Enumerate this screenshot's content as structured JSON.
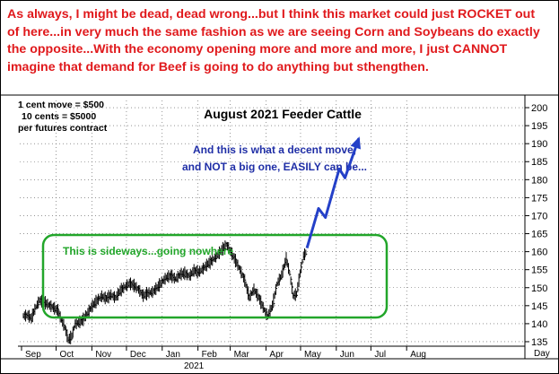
{
  "commentary": {
    "banner": "As always, I might be dead, dead wrong...but I think this market could just ROCKET out of here...in very much the same fashion as we are seeing Corn and Soybeans do exactly the opposite...With the economy opening more and more and more,  I just CANNOT imagine that demand for Beef is going to do anything but sthengthen.",
    "contract_lines": [
      "1 cent move = $500",
      "10 cents = $5000",
      "per futures contract"
    ]
  },
  "colors": {
    "banner": "#e0191c",
    "annotation_blue": "#1f2ea6",
    "annotation_green": "#22a62a",
    "arrow": "#2440c8",
    "bars": "#000000",
    "grid": "#555555"
  },
  "chart_data": {
    "type": "bar",
    "title": "August 2021 Feeder Cattle",
    "ylim": [
      133,
      202
    ],
    "y_ticks": [
      135,
      140,
      145,
      150,
      155,
      160,
      165,
      170,
      175,
      180,
      185,
      190,
      195,
      200
    ],
    "y_axis_side": "right",
    "y_axis_label": "Day",
    "grid": "dotted",
    "months": [
      "Sep",
      "Oct",
      "Nov",
      "Dec",
      "Jan",
      "Feb",
      "Mar",
      "Apr",
      "May",
      "Jun",
      "Jul",
      "Aug"
    ],
    "year_label": "2021",
    "prices": [
      {
        "d": 0,
        "p": 142.2
      },
      {
        "d": 4,
        "p": 142.3
      },
      {
        "d": 7,
        "p": 141.5
      },
      {
        "d": 10,
        "p": 144.0
      },
      {
        "d": 14,
        "p": 146.5
      },
      {
        "d": 18,
        "p": 146.0
      },
      {
        "d": 22,
        "p": 145.2
      },
      {
        "d": 26,
        "p": 144.5
      },
      {
        "d": 30,
        "p": 143.6
      },
      {
        "d": 33,
        "p": 141.0
      },
      {
        "d": 36,
        "p": 139.0
      },
      {
        "d": 39,
        "p": 135.5
      },
      {
        "d": 42,
        "p": 136.5
      },
      {
        "d": 45,
        "p": 140.0
      },
      {
        "d": 48,
        "p": 140.3
      },
      {
        "d": 52,
        "p": 141.2
      },
      {
        "d": 56,
        "p": 143.2
      },
      {
        "d": 60,
        "p": 145.0
      },
      {
        "d": 64,
        "p": 146.5
      },
      {
        "d": 68,
        "p": 147.6
      },
      {
        "d": 72,
        "p": 147.0
      },
      {
        "d": 76,
        "p": 148.0
      },
      {
        "d": 80,
        "p": 147.2
      },
      {
        "d": 84,
        "p": 149.2
      },
      {
        "d": 88,
        "p": 150.2
      },
      {
        "d": 92,
        "p": 151.2
      },
      {
        "d": 96,
        "p": 150.6
      },
      {
        "d": 100,
        "p": 149.5
      },
      {
        "d": 104,
        "p": 147.8
      },
      {
        "d": 108,
        "p": 148.5
      },
      {
        "d": 112,
        "p": 148.8
      },
      {
        "d": 116,
        "p": 150.0
      },
      {
        "d": 120,
        "p": 151.5
      },
      {
        "d": 124,
        "p": 152.8
      },
      {
        "d": 128,
        "p": 153.4
      },
      {
        "d": 132,
        "p": 152.4
      },
      {
        "d": 136,
        "p": 153.7
      },
      {
        "d": 140,
        "p": 154.0
      },
      {
        "d": 144,
        "p": 153.2
      },
      {
        "d": 148,
        "p": 154.8
      },
      {
        "d": 152,
        "p": 154.3
      },
      {
        "d": 156,
        "p": 155.3
      },
      {
        "d": 160,
        "p": 156.6
      },
      {
        "d": 164,
        "p": 157.6
      },
      {
        "d": 168,
        "p": 159.0
      },
      {
        "d": 172,
        "p": 160.4
      },
      {
        "d": 176,
        "p": 162.0
      },
      {
        "d": 180,
        "p": 160.0
      },
      {
        "d": 184,
        "p": 157.5
      },
      {
        "d": 188,
        "p": 155.0
      },
      {
        "d": 192,
        "p": 152.0
      },
      {
        "d": 196,
        "p": 147.3
      },
      {
        "d": 200,
        "p": 149.5
      },
      {
        "d": 204,
        "p": 147.4
      },
      {
        "d": 208,
        "p": 144.5
      },
      {
        "d": 212,
        "p": 142.0
      },
      {
        "d": 216,
        "p": 145.0
      },
      {
        "d": 220,
        "p": 151.0
      },
      {
        "d": 224,
        "p": 153.5
      },
      {
        "d": 228,
        "p": 158.0
      },
      {
        "d": 231,
        "p": 154.0
      },
      {
        "d": 234,
        "p": 147.8
      },
      {
        "d": 237,
        "p": 148.2
      },
      {
        "d": 240,
        "p": 154.0
      },
      {
        "d": 243,
        "p": 158.8
      },
      {
        "d": 246,
        "p": 160.2
      }
    ],
    "projection": [
      {
        "d": 246,
        "p": 161.0
      },
      {
        "d": 256,
        "p": 172.0
      },
      {
        "d": 262,
        "p": 169.5
      },
      {
        "d": 274,
        "p": 183.0
      },
      {
        "d": 279,
        "p": 180.5
      },
      {
        "d": 291,
        "p": 191.5
      }
    ],
    "annotations": {
      "projection_note": [
        "And this is what a decent move,",
        "and NOT a big one, EASILY can be..."
      ],
      "range_note": "This is sideways...going nowhere"
    }
  }
}
